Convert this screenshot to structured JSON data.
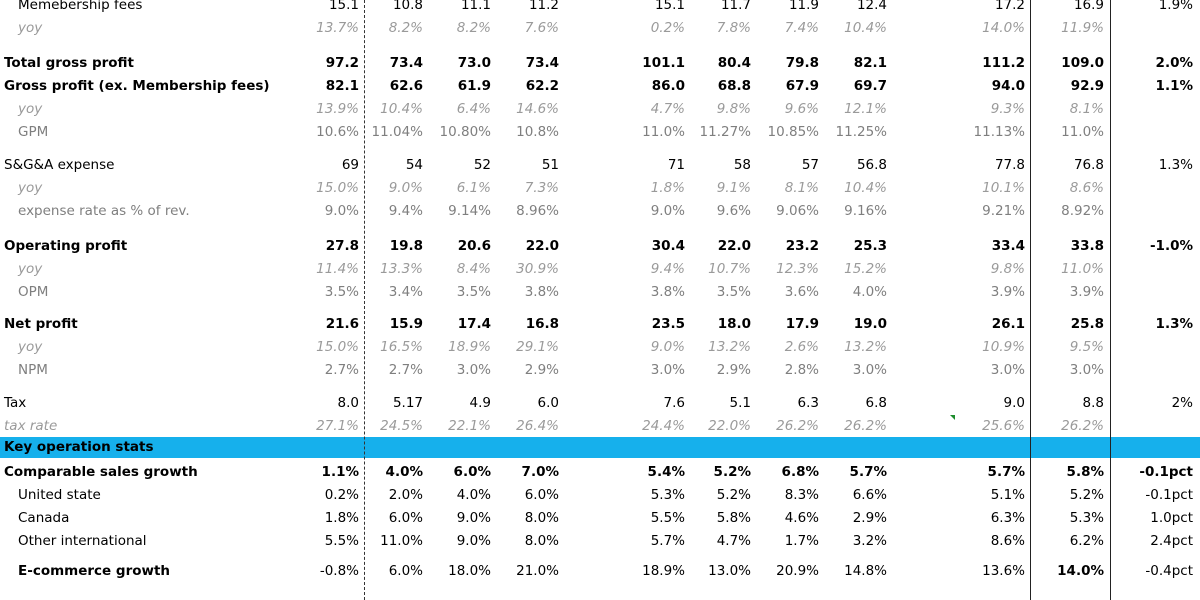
{
  "rows": [
    {
      "type": "data",
      "style": "normal",
      "indent": 1,
      "label": "Memebership fees",
      "values": [
        "15.1",
        "10.8",
        "11.1",
        "11.2",
        "15.1",
        "11.7",
        "11.9",
        "12.4",
        "17.2",
        "16.9",
        "1.9%"
      ]
    },
    {
      "type": "data",
      "style": "italic",
      "indent": 1,
      "label": "yoy",
      "values": [
        "13.7%",
        "8.2%",
        "8.2%",
        "7.6%",
        "0.2%",
        "7.8%",
        "7.4%",
        "10.4%",
        "14.0%",
        "11.9%",
        ""
      ]
    },
    {
      "type": "spacer"
    },
    {
      "type": "data",
      "style": "bold",
      "indent": 0,
      "label": "Total gross profit",
      "values": [
        "97.2",
        "73.4",
        "73.0",
        "73.4",
        "101.1",
        "80.4",
        "79.8",
        "82.1",
        "111.2",
        "109.0",
        "2.0%"
      ]
    },
    {
      "type": "data",
      "style": "bold",
      "indent": 0,
      "label": "Gross profit (ex. Membership fees)",
      "values": [
        "82.1",
        "62.6",
        "61.9",
        "62.2",
        "86.0",
        "68.8",
        "67.9",
        "69.7",
        "94.0",
        "92.9",
        "1.1%"
      ]
    },
    {
      "type": "data",
      "style": "italic",
      "indent": 1,
      "label": "yoy",
      "values": [
        "13.9%",
        "10.4%",
        "6.4%",
        "14.6%",
        "4.7%",
        "9.8%",
        "9.6%",
        "12.1%",
        "9.3%",
        "8.1%",
        ""
      ]
    },
    {
      "type": "data",
      "style": "gray",
      "indent": 1,
      "label": "GPM",
      "values": [
        "10.6%",
        "11.04%",
        "10.80%",
        "10.8%",
        "11.0%",
        "11.27%",
        "10.85%",
        "11.25%",
        "11.13%",
        "11.0%",
        ""
      ]
    },
    {
      "type": "spacer"
    },
    {
      "type": "data",
      "style": "normal",
      "indent": 0,
      "label": "S&G&A expense",
      "values": [
        "69",
        "54",
        "52",
        "51",
        "71",
        "58",
        "57",
        "56.8",
        "77.8",
        "76.8",
        "1.3%"
      ]
    },
    {
      "type": "data",
      "style": "italic",
      "indent": 1,
      "label": "yoy",
      "values": [
        "15.0%",
        "9.0%",
        "6.1%",
        "7.3%",
        "1.8%",
        "9.1%",
        "8.1%",
        "10.4%",
        "10.1%",
        "8.6%",
        ""
      ]
    },
    {
      "type": "data",
      "style": "gray",
      "indent": 1,
      "label": "expense rate as % of rev.",
      "values": [
        "9.0%",
        "9.4%",
        "9.14%",
        "8.96%",
        "9.0%",
        "9.6%",
        "9.06%",
        "9.16%",
        "9.21%",
        "8.92%",
        ""
      ]
    },
    {
      "type": "spacer"
    },
    {
      "type": "data",
      "style": "bold",
      "indent": 0,
      "label": "Operating profit",
      "values": [
        "27.8",
        "19.8",
        "20.6",
        "22.0",
        "30.4",
        "22.0",
        "23.2",
        "25.3",
        "33.4",
        "33.8",
        "-1.0%"
      ]
    },
    {
      "type": "data",
      "style": "italic",
      "indent": 1,
      "label": "yoy",
      "values": [
        "11.4%",
        "13.3%",
        "8.4%",
        "30.9%",
        "9.4%",
        "10.7%",
        "12.3%",
        "15.2%",
        "9.8%",
        "11.0%",
        ""
      ]
    },
    {
      "type": "data",
      "style": "gray",
      "indent": 1,
      "label": "OPM",
      "values": [
        "3.5%",
        "3.4%",
        "3.5%",
        "3.8%",
        "3.8%",
        "3.5%",
        "3.6%",
        "4.0%",
        "3.9%",
        "3.9%",
        ""
      ]
    },
    {
      "type": "spacer"
    },
    {
      "type": "data",
      "style": "bold",
      "indent": 0,
      "label": "Net profit",
      "values": [
        "21.6",
        "15.9",
        "17.4",
        "16.8",
        "23.5",
        "18.0",
        "17.9",
        "19.0",
        "26.1",
        "25.8",
        "1.3%"
      ]
    },
    {
      "type": "data",
      "style": "italic",
      "indent": 1,
      "label": "yoy",
      "values": [
        "15.0%",
        "16.5%",
        "18.9%",
        "29.1%",
        "9.0%",
        "13.2%",
        "2.6%",
        "13.2%",
        "10.9%",
        "9.5%",
        ""
      ]
    },
    {
      "type": "data",
      "style": "gray",
      "indent": 1,
      "label": "NPM",
      "values": [
        "2.7%",
        "2.7%",
        "3.0%",
        "2.9%",
        "3.0%",
        "2.9%",
        "2.8%",
        "3.0%",
        "3.0%",
        "3.0%",
        ""
      ]
    },
    {
      "type": "spacer"
    },
    {
      "type": "data",
      "style": "normal",
      "indent": 0,
      "label": "Tax",
      "values": [
        "8.0",
        "5.17",
        "4.9",
        "6.0",
        "7.6",
        "5.1",
        "6.3",
        "6.8",
        "9.0",
        "8.8",
        "2%"
      ]
    },
    {
      "type": "data",
      "style": "italic",
      "indent": 0,
      "label": "tax rate",
      "values": [
        "27.1%",
        "24.5%",
        "22.1%",
        "26.4%",
        "24.4%",
        "22.0%",
        "26.2%",
        "26.2%",
        "25.6%",
        "26.2%",
        ""
      ]
    },
    {
      "type": "section",
      "label": "Key operation stats"
    },
    {
      "type": "data",
      "style": "bold",
      "indent": 0,
      "label": "Comparable sales growth",
      "values": [
        "1.1%",
        "4.0%",
        "6.0%",
        "7.0%",
        "5.4%",
        "5.2%",
        "6.8%",
        "5.7%",
        "5.7%",
        "5.8%",
        "-0.1pct"
      ]
    },
    {
      "type": "data",
      "style": "normal",
      "indent": 1,
      "label": "United state",
      "values": [
        "0.2%",
        "2.0%",
        "4.0%",
        "6.0%",
        "5.3%",
        "5.2%",
        "8.3%",
        "6.6%",
        "5.1%",
        "5.2%",
        "-0.1pct"
      ]
    },
    {
      "type": "data",
      "style": "normal",
      "indent": 1,
      "label": "Canada",
      "values": [
        "1.8%",
        "6.0%",
        "9.0%",
        "8.0%",
        "5.5%",
        "5.8%",
        "4.6%",
        "2.9%",
        "6.3%",
        "5.3%",
        "1.0pct"
      ]
    },
    {
      "type": "data",
      "style": "normal",
      "indent": 1,
      "label": "Other international",
      "values": [
        "5.5%",
        "11.0%",
        "9.0%",
        "8.0%",
        "5.7%",
        "4.7%",
        "1.7%",
        "3.2%",
        "8.6%",
        "6.2%",
        "2.4pct"
      ]
    },
    {
      "type": "spacer"
    },
    {
      "type": "data",
      "style": "ecom",
      "indent": 1,
      "label": "E-commerce growth",
      "values": [
        "-0.8%",
        "6.0%",
        "18.0%",
        "21.0%",
        "18.9%",
        "13.0%",
        "20.9%",
        "14.8%",
        "13.6%",
        "14.0%",
        "-0.4pct"
      ]
    }
  ],
  "colors": {
    "section": "#16b0ec",
    "italic_text": "#9a9a9a",
    "gray_text": "#7f7f7f",
    "marker": "#1c8c2c"
  }
}
